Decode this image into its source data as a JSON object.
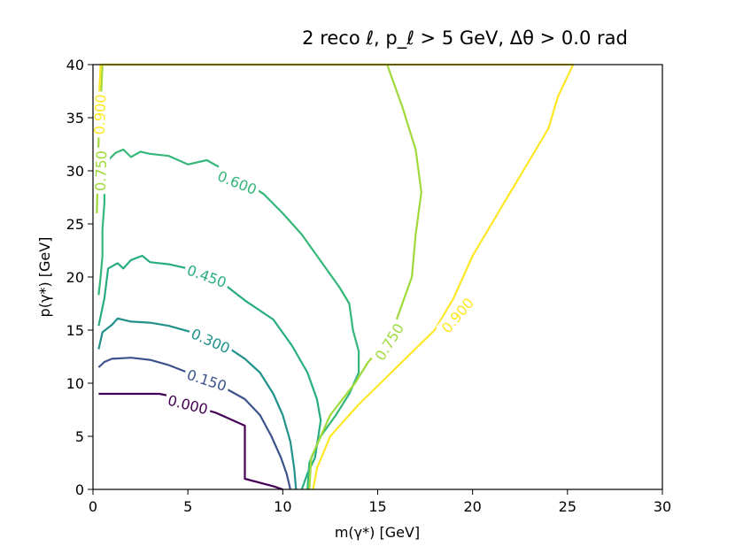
{
  "chart_data": {
    "type": "contour",
    "title": "2 reco ℓ, p_ℓ > 5 GeV, Δθ > 0.0 rad",
    "xlabel": "m(γ*) [GeV]",
    "ylabel": "p(γ*) [GeV]",
    "xlim": [
      0,
      30
    ],
    "ylim": [
      0,
      40
    ],
    "x_ticks": [
      0,
      5,
      10,
      15,
      20,
      25,
      30
    ],
    "y_ticks": [
      0,
      5,
      10,
      15,
      20,
      25,
      30,
      35,
      40
    ],
    "grid": false,
    "levels": [
      {
        "level": "0.000",
        "color": "#440154",
        "points": [
          [
            0.3,
            9.0
          ],
          [
            1.5,
            9.0
          ],
          [
            3.5,
            9.0
          ],
          [
            4.3,
            8.7
          ],
          [
            5.0,
            8.0
          ],
          [
            6.5,
            7.2
          ],
          [
            8.0,
            6.0
          ],
          [
            8.0,
            3.0
          ],
          [
            8.0,
            1.0
          ],
          [
            9.5,
            0.3
          ],
          [
            10.0,
            0.0
          ]
        ]
      },
      {
        "level": "0.150",
        "color": "#3b528b",
        "points": [
          [
            0.3,
            11.5
          ],
          [
            0.6,
            12.0
          ],
          [
            1.0,
            12.3
          ],
          [
            2.0,
            12.4
          ],
          [
            3.0,
            12.2
          ],
          [
            4.0,
            11.7
          ],
          [
            5.0,
            11.0
          ],
          [
            6.0,
            10.3
          ],
          [
            7.0,
            9.5
          ],
          [
            8.0,
            8.5
          ],
          [
            8.8,
            7.0
          ],
          [
            9.4,
            5.0
          ],
          [
            9.9,
            3.0
          ],
          [
            10.2,
            1.5
          ],
          [
            10.4,
            0.0
          ]
        ]
      },
      {
        "level": "0.300",
        "color": "#21918c",
        "points": [
          [
            0.3,
            13.2
          ],
          [
            0.5,
            14.8
          ],
          [
            1.0,
            15.5
          ],
          [
            1.3,
            16.1
          ],
          [
            2.0,
            15.8
          ],
          [
            3.0,
            15.7
          ],
          [
            4.0,
            15.4
          ],
          [
            5.0,
            14.9
          ],
          [
            6.0,
            14.3
          ],
          [
            7.0,
            13.5
          ],
          [
            8.0,
            12.3
          ],
          [
            8.8,
            11.0
          ],
          [
            9.5,
            9.0
          ],
          [
            10.0,
            7.0
          ],
          [
            10.4,
            4.5
          ],
          [
            10.6,
            2.0
          ],
          [
            10.7,
            0.0
          ]
        ]
      },
      {
        "level": "0.450",
        "color": "#27ad81",
        "points": [
          [
            0.3,
            15.4
          ],
          [
            0.6,
            18.0
          ],
          [
            0.8,
            20.8
          ],
          [
            1.3,
            21.3
          ],
          [
            1.6,
            20.8
          ],
          [
            2.0,
            21.6
          ],
          [
            2.6,
            22.0
          ],
          [
            3.0,
            21.4
          ],
          [
            4.0,
            21.2
          ],
          [
            5.0,
            20.8
          ],
          [
            6.0,
            20.0
          ],
          [
            7.0,
            19.2
          ],
          [
            8.0,
            17.8
          ],
          [
            9.5,
            16.0
          ],
          [
            10.5,
            13.5
          ],
          [
            11.3,
            11.0
          ],
          [
            11.8,
            8.5
          ],
          [
            12.0,
            6.5
          ],
          [
            11.7,
            3.0
          ],
          [
            11.3,
            1.5
          ],
          [
            11.0,
            0.0
          ]
        ]
      },
      {
        "level": "0.600",
        "color": "#35b779",
        "points": [
          [
            0.3,
            18.3
          ],
          [
            0.4,
            20.0
          ],
          [
            0.5,
            22.0
          ],
          [
            0.5,
            24.5
          ],
          [
            0.6,
            27.0
          ],
          [
            0.6,
            30.0
          ],
          [
            0.8,
            31.0
          ],
          [
            1.2,
            31.7
          ],
          [
            1.6,
            32.0
          ],
          [
            2.0,
            31.3
          ],
          [
            2.5,
            31.8
          ],
          [
            3.0,
            31.6
          ],
          [
            4.0,
            31.4
          ],
          [
            5.0,
            30.6
          ],
          [
            6.0,
            31.0
          ],
          [
            7.0,
            30.0
          ],
          [
            8.0,
            29.0
          ],
          [
            9.0,
            27.8
          ],
          [
            10.0,
            26.0
          ],
          [
            11.0,
            24.0
          ],
          [
            12.0,
            21.5
          ],
          [
            13.0,
            19.0
          ],
          [
            13.5,
            17.5
          ],
          [
            13.7,
            15.0
          ],
          [
            14.0,
            13.0
          ],
          [
            14.0,
            11.0
          ],
          [
            13.5,
            9.0
          ],
          [
            12.8,
            7.0
          ],
          [
            12.0,
            5.0
          ],
          [
            11.4,
            2.5
          ],
          [
            11.3,
            0.0
          ]
        ]
      },
      {
        "level": "0.750",
        "color": "#9fda3a",
        "points": [
          [
            0.2,
            26.0
          ],
          [
            0.25,
            29.0
          ],
          [
            0.3,
            33.0
          ],
          [
            0.4,
            36.0
          ],
          [
            0.5,
            40.0
          ],
          [
            15.5,
            40.0
          ],
          [
            16.3,
            36.0
          ],
          [
            17.0,
            32.0
          ],
          [
            17.3,
            28.0
          ],
          [
            17.0,
            24.0
          ],
          [
            16.8,
            20.0
          ],
          [
            16.0,
            16.0
          ],
          [
            15.5,
            14.0
          ],
          [
            14.5,
            12.0
          ],
          [
            13.8,
            10.0
          ],
          [
            12.5,
            7.0
          ],
          [
            11.5,
            3.0
          ],
          [
            11.4,
            0.0
          ]
        ]
      },
      {
        "level": "0.900",
        "color": "#fde725",
        "points": [
          [
            0.3,
            34.5
          ],
          [
            0.3,
            36.5
          ],
          [
            0.35,
            38.0
          ],
          [
            0.4,
            40.0
          ],
          [
            25.3,
            40.0
          ],
          [
            24.5,
            37.0
          ],
          [
            24.0,
            34.0
          ],
          [
            23.0,
            31.0
          ],
          [
            22.0,
            28.0
          ],
          [
            21.0,
            25.0
          ],
          [
            20.0,
            22.0
          ],
          [
            19.0,
            18.0
          ],
          [
            18.0,
            15.0
          ],
          [
            16.0,
            11.5
          ],
          [
            14.0,
            8.0
          ],
          [
            12.5,
            5.0
          ],
          [
            11.8,
            2.0
          ],
          [
            11.6,
            0.0
          ]
        ]
      }
    ],
    "labels": [
      {
        "text": "0.000",
        "x": 5.0,
        "y": 8.0,
        "angle": 14,
        "color": "#440154"
      },
      {
        "text": "0.150",
        "x": 6.0,
        "y": 10.3,
        "angle": 18,
        "color": "#3b528b"
      },
      {
        "text": "0.300",
        "x": 6.2,
        "y": 14.0,
        "angle": 24,
        "color": "#21918c"
      },
      {
        "text": "0.450",
        "x": 6.0,
        "y": 20.1,
        "angle": 20,
        "color": "#27ad81"
      },
      {
        "text": "0.600",
        "x": 7.6,
        "y": 28.9,
        "angle": 22,
        "color": "#35b779"
      },
      {
        "text": "0.750",
        "x": 15.6,
        "y": 13.9,
        "angle": -58,
        "color": "#9fda3a"
      },
      {
        "text": "0.900",
        "x": 19.2,
        "y": 16.4,
        "angle": -50,
        "color": "#fde725"
      },
      {
        "text": "0.750",
        "x": 0.4,
        "y": 30.0,
        "angle": -88,
        "color": "#9fda3a"
      },
      {
        "text": "0.900",
        "x": 0.35,
        "y": 35.3,
        "angle": -88,
        "color": "#fde725"
      }
    ]
  }
}
